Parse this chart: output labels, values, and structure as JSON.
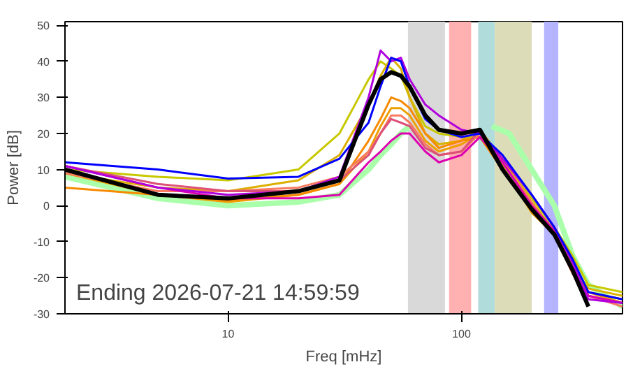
{
  "chart_data": {
    "type": "line",
    "xlabel": "Freq [mHz]",
    "ylabel": "Power [dB]",
    "log": "x",
    "grid": false,
    "xlim": [
      2,
      490
    ],
    "ylim": [
      -30,
      51
    ],
    "xticks": [
      10,
      100
    ],
    "yticks": [
      -30,
      -20,
      -10,
      0,
      10,
      20,
      30,
      40,
      50
    ],
    "x": [
      2,
      5,
      10,
      20,
      30,
      40,
      45,
      50,
      55,
      60,
      70,
      80,
      100,
      120,
      150,
      200,
      250,
      300,
      350,
      490
    ],
    "series": [
      {
        "color": "#c8c800",
        "values": [
          10,
          8,
          7,
          10,
          20,
          35,
          40,
          38,
          36,
          30,
          22,
          20,
          19,
          19,
          12,
          2,
          -6,
          -14,
          -22,
          -24
        ]
      },
      {
        "color": "#dcb000",
        "values": [
          9,
          5,
          4,
          7,
          14,
          28,
          36,
          41,
          38,
          30,
          20,
          17,
          18,
          21,
          13,
          1,
          -7,
          -17,
          -23,
          -25
        ]
      },
      {
        "color": "#eda000",
        "values": [
          9,
          3,
          1,
          3,
          6,
          15,
          22,
          27,
          27,
          25,
          18,
          15,
          17,
          20,
          11,
          -2,
          -8,
          -18,
          -24,
          -27
        ]
      },
      {
        "color": "#f78a00",
        "values": [
          5,
          3,
          1.5,
          3,
          6,
          18,
          24,
          30,
          29,
          27,
          20,
          16,
          18,
          19,
          10,
          0,
          -7,
          -18,
          -24,
          -26
        ]
      },
      {
        "color": "#f87a60",
        "values": [
          9,
          4,
          4,
          5,
          8,
          15,
          20,
          25,
          25,
          23,
          17,
          14,
          15,
          20,
          12,
          1,
          -8,
          -19,
          -25,
          -28
        ]
      },
      {
        "color": "#dd5077",
        "values": [
          11,
          6,
          4,
          4,
          7,
          14,
          20,
          24,
          23,
          22,
          16,
          14,
          15,
          21,
          12,
          0,
          -7,
          -18,
          -25,
          -27
        ]
      },
      {
        "color": "#dd00b0",
        "values": [
          11,
          5,
          2,
          2,
          3,
          12,
          15,
          18,
          20,
          20,
          15,
          12,
          14,
          19,
          12,
          0,
          -7,
          -18,
          -25,
          -27
        ]
      },
      {
        "color": "#b000dd",
        "values": [
          11,
          5,
          3,
          4,
          8,
          30,
          43,
          40,
          41,
          35,
          28,
          25,
          21,
          20,
          13,
          3,
          -6,
          -16,
          -26,
          -27
        ]
      },
      {
        "color": "#0000ff",
        "values": [
          12,
          10,
          7.5,
          8,
          13,
          23,
          33,
          41,
          40,
          33,
          24,
          21,
          19,
          20,
          14,
          3,
          -6,
          -15,
          -24,
          -26
        ]
      },
      {
        "color": "#000000",
        "values": [
          10,
          3,
          2,
          4,
          7,
          28,
          35,
          37,
          36,
          33,
          25,
          21,
          20,
          21,
          10,
          -1,
          -8,
          -18,
          -28,
          null
        ]
      },
      {
        "color": "#aaffaa",
        "x": [
          2,
          5,
          10,
          20,
          30,
          40,
          45,
          50,
          55,
          60,
          70,
          135,
          160,
          200,
          250,
          300,
          350,
          490
        ],
        "values": [
          8,
          2,
          0,
          1,
          3,
          10,
          14,
          17,
          20,
          22,
          null,
          22,
          20,
          10,
          0,
          -14,
          -22,
          -28
        ]
      }
    ],
    "bands": [
      {
        "axis": "x",
        "from": 59,
        "to": 85,
        "color": "#d9d9d9"
      },
      {
        "axis": "x",
        "from": 88.5,
        "to": 110,
        "color": "#ffb0b0"
      },
      {
        "axis": "x",
        "from": 118,
        "to": 139,
        "color": "#b0dcdc"
      },
      {
        "axis": "x",
        "from": 139,
        "to": 200,
        "color": "#dcdcb8"
      },
      {
        "axis": "x",
        "from": 226,
        "to": 260,
        "color": "#b4b4ff"
      }
    ],
    "annotations": [
      "Ending 2026-07-21 14:59:59"
    ]
  }
}
